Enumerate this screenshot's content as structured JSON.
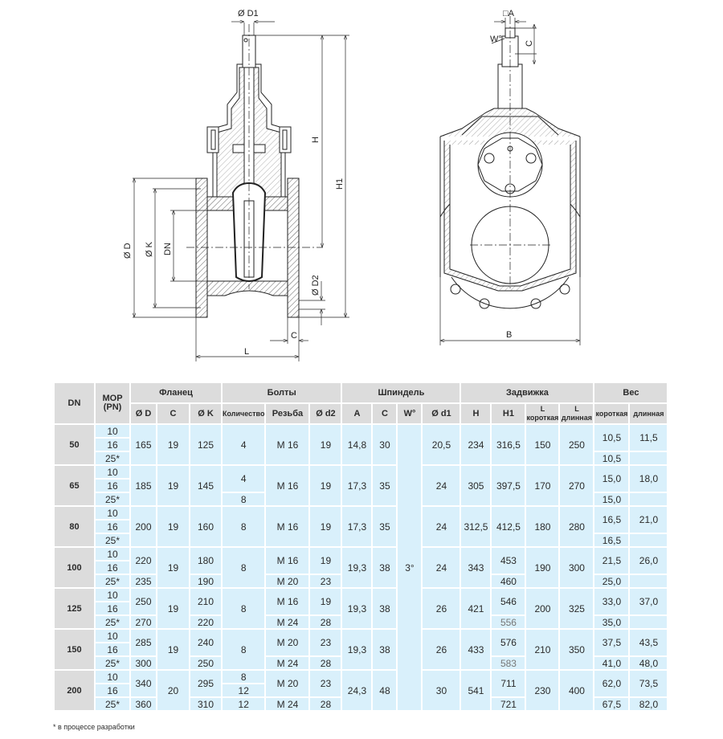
{
  "drawing_labels": {
    "d1": "Ø D1",
    "h": "H",
    "h1": "H1",
    "d": "Ø D",
    "k": "Ø K",
    "dn": "DN",
    "d2": "Ø D2",
    "c": "C",
    "l": "L",
    "a": "□A",
    "w": "W°",
    "c2": "C",
    "b": "B"
  },
  "table": {
    "header": {
      "dn": "DN",
      "mop": [
        "МОР",
        "(PN)"
      ],
      "groups": [
        "Фланец",
        "Болты",
        "Шпиндель",
        "Задвижка",
        "Вес"
      ],
      "sub": [
        "Ø D",
        "C",
        "Ø K",
        "Количество",
        "Резьба",
        "Ø d2",
        "A",
        "C",
        "W°",
        "Ø d1",
        "H",
        "H1",
        "L короткая",
        "L длинная",
        "короткая",
        "длинная"
      ]
    },
    "w_value": "3°",
    "groups": [
      {
        "dn": "50",
        "pn": [
          "10",
          "16",
          "25*"
        ],
        "cells": [
          "165",
          "19",
          "125",
          "4",
          "M 16",
          "19",
          "14,8",
          "30",
          "20,5",
          "234",
          "316,5",
          "150",
          "250",
          [
            "10,5",
            "10,5"
          ],
          [
            "11,5",
            ""
          ]
        ]
      },
      {
        "dn": "65",
        "pn": [
          "10",
          "16",
          "25*"
        ],
        "cells": [
          "185",
          "19",
          "145",
          [
            "4",
            "8"
          ],
          "M 16",
          "19",
          "17,3",
          "35",
          "24",
          "305",
          "397,5",
          "170",
          "270",
          [
            "15,0",
            "15,0"
          ],
          [
            "18,0",
            ""
          ]
        ]
      },
      {
        "dn": "80",
        "pn": [
          "10",
          "16",
          "25*"
        ],
        "cells": [
          "200",
          "19",
          "160",
          "8",
          "M 16",
          "19",
          "17,3",
          "35",
          "24",
          "312,5",
          "412,5",
          "180",
          "280",
          [
            "16,5",
            "16,5"
          ],
          [
            "21,0",
            ""
          ]
        ]
      },
      {
        "dn": "100",
        "pn": [
          "10",
          "16",
          "25*"
        ],
        "cells": [
          [
            "220",
            "235"
          ],
          "19",
          [
            "180",
            "190"
          ],
          "8",
          [
            "M 16",
            "M 20"
          ],
          [
            "19",
            "23"
          ],
          "19,3",
          "38",
          "24",
          "343",
          [
            "453",
            "460"
          ],
          "190",
          "300",
          [
            "21,5",
            "25,0"
          ],
          [
            "26,0",
            ""
          ]
        ]
      },
      {
        "dn": "125",
        "pn": [
          "10",
          "16",
          "25*"
        ],
        "h1_bottom_muted": true,
        "cells": [
          [
            "250",
            "270"
          ],
          "19",
          [
            "210",
            "220"
          ],
          "8",
          [
            "M 16",
            "M 24"
          ],
          [
            "19",
            "28"
          ],
          "19,3",
          "38",
          "26",
          "421",
          [
            "546",
            "556"
          ],
          "200",
          "325",
          [
            "33,0",
            "35,0"
          ],
          [
            "37,0",
            ""
          ]
        ]
      },
      {
        "dn": "150",
        "pn": [
          "10",
          "16",
          "25*"
        ],
        "h1_bottom_muted": true,
        "cells": [
          [
            "285",
            "300"
          ],
          "19",
          [
            "240",
            "250"
          ],
          "8",
          [
            "M 20",
            "M 24"
          ],
          [
            "23",
            "28"
          ],
          "19,3",
          "38",
          "26",
          "433",
          [
            "576",
            "583"
          ],
          "210",
          "350",
          [
            "37,5",
            "41,0"
          ],
          [
            "43,5",
            "48,0"
          ]
        ]
      },
      {
        "dn": "200",
        "pn": [
          "10",
          "16",
          "25*"
        ],
        "cells": [
          [
            "340",
            "360"
          ],
          "20",
          [
            "295",
            "310"
          ],
          [
            "8",
            "12",
            "12"
          ],
          [
            "M 20",
            "M 24"
          ],
          [
            "23",
            "28"
          ],
          "24,3",
          "48",
          "30",
          "541",
          [
            "711",
            "721"
          ],
          "230",
          "400",
          [
            "62,0",
            "67,5"
          ],
          [
            "73,5",
            "82,0"
          ]
        ]
      }
    ]
  },
  "footnote": "* в процессе разработки",
  "colors": {
    "header_bg": "#dcdcdc",
    "cell_bg": "#d9f0fb",
    "muted_text": "#777777"
  }
}
